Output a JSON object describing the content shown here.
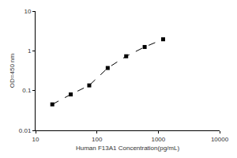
{
  "chart_data": {
    "type": "scatter",
    "x_label": "Human F13A1 Concentration(pg/mL)",
    "y_label": "OD=450 nm",
    "x": [
      18.75,
      37.5,
      75,
      150,
      300,
      600,
      1200
    ],
    "values": [
      0.045,
      0.08,
      0.135,
      0.37,
      0.73,
      1.25,
      1.95
    ],
    "color": "#000000",
    "marker": "square",
    "line_style": "dashed",
    "log": true,
    "grid": false,
    "xlim": [
      10,
      10000
    ],
    "xticks": [
      10,
      100,
      1000,
      10000
    ],
    "ylim": [
      0.01,
      10
    ],
    "yticks": [
      0.01,
      0.1,
      1,
      10
    ]
  }
}
